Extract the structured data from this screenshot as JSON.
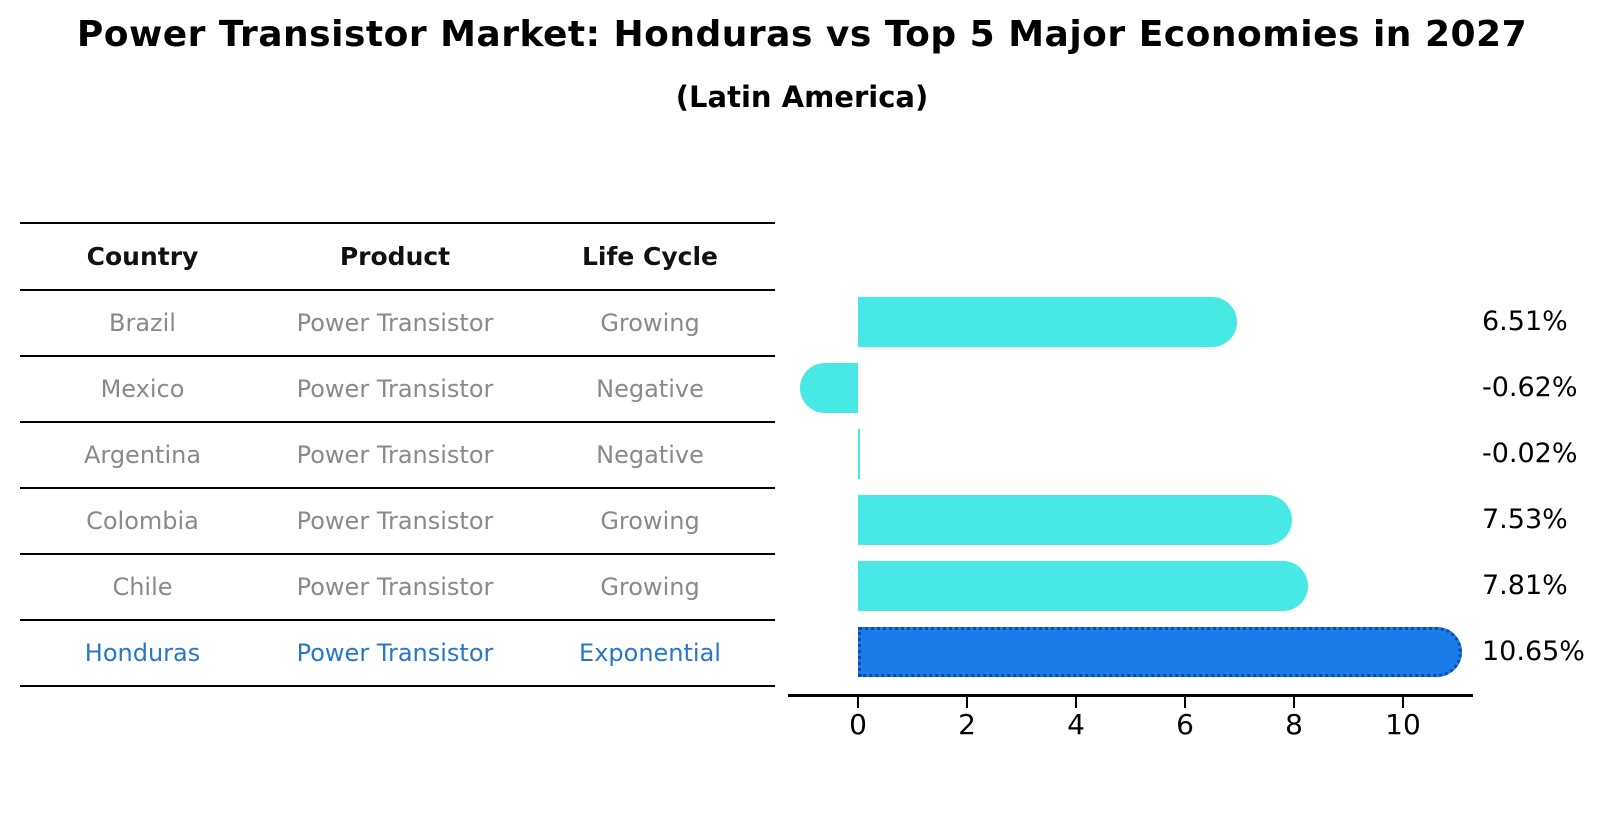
{
  "title": "Power Transistor Market: Honduras vs Top 5 Major Economies in 2027",
  "subtitle": "(Latin America)",
  "table": {
    "headers": [
      "Country",
      "Product",
      "Life Cycle"
    ],
    "rows": [
      {
        "country": "Brazil",
        "product": "Power Transistor",
        "life_cycle": "Growing",
        "highlight": false
      },
      {
        "country": "Mexico",
        "product": "Power Transistor",
        "life_cycle": "Negative",
        "highlight": false
      },
      {
        "country": "Argentina",
        "product": "Power Transistor",
        "life_cycle": "Negative",
        "highlight": false
      },
      {
        "country": "Colombia",
        "product": "Power Transistor",
        "life_cycle": "Growing",
        "highlight": false
      },
      {
        "country": "Chile",
        "product": "Power Transistor",
        "life_cycle": "Growing",
        "highlight": false
      },
      {
        "country": "Honduras",
        "product": "Power Transistor",
        "life_cycle": "Exponential",
        "highlight": true
      }
    ]
  },
  "chart_data": {
    "type": "bar",
    "orientation": "horizontal",
    "title": "Power Transistor Market: Honduras vs Top 5 Major Economies in 2027",
    "subtitle": "(Latin America)",
    "categories": [
      "Brazil",
      "Mexico",
      "Argentina",
      "Colombia",
      "Chile",
      "Honduras"
    ],
    "values": [
      6.51,
      -0.62,
      -0.02,
      7.53,
      7.81,
      10.65
    ],
    "value_labels": [
      "6.51%",
      "-0.62%",
      "-0.02%",
      "7.53%",
      "7.81%",
      "10.65%"
    ],
    "xlabel": "",
    "ylabel": "",
    "x_ticks": [
      0,
      2,
      4,
      6,
      8,
      10
    ],
    "xlim": [
      -1.3,
      11.3
    ],
    "grid": false,
    "legend": false,
    "highlight_category": "Honduras",
    "colors": {
      "default_bar": "#48e8e4",
      "highlight_bar": "#1a7ce8",
      "highlight_bar_edge": "#0b4ab0",
      "highlight_text": "#2878c9",
      "row_text": "#8a8a8a",
      "header_text": "#111111",
      "axis": "#000000"
    }
  }
}
